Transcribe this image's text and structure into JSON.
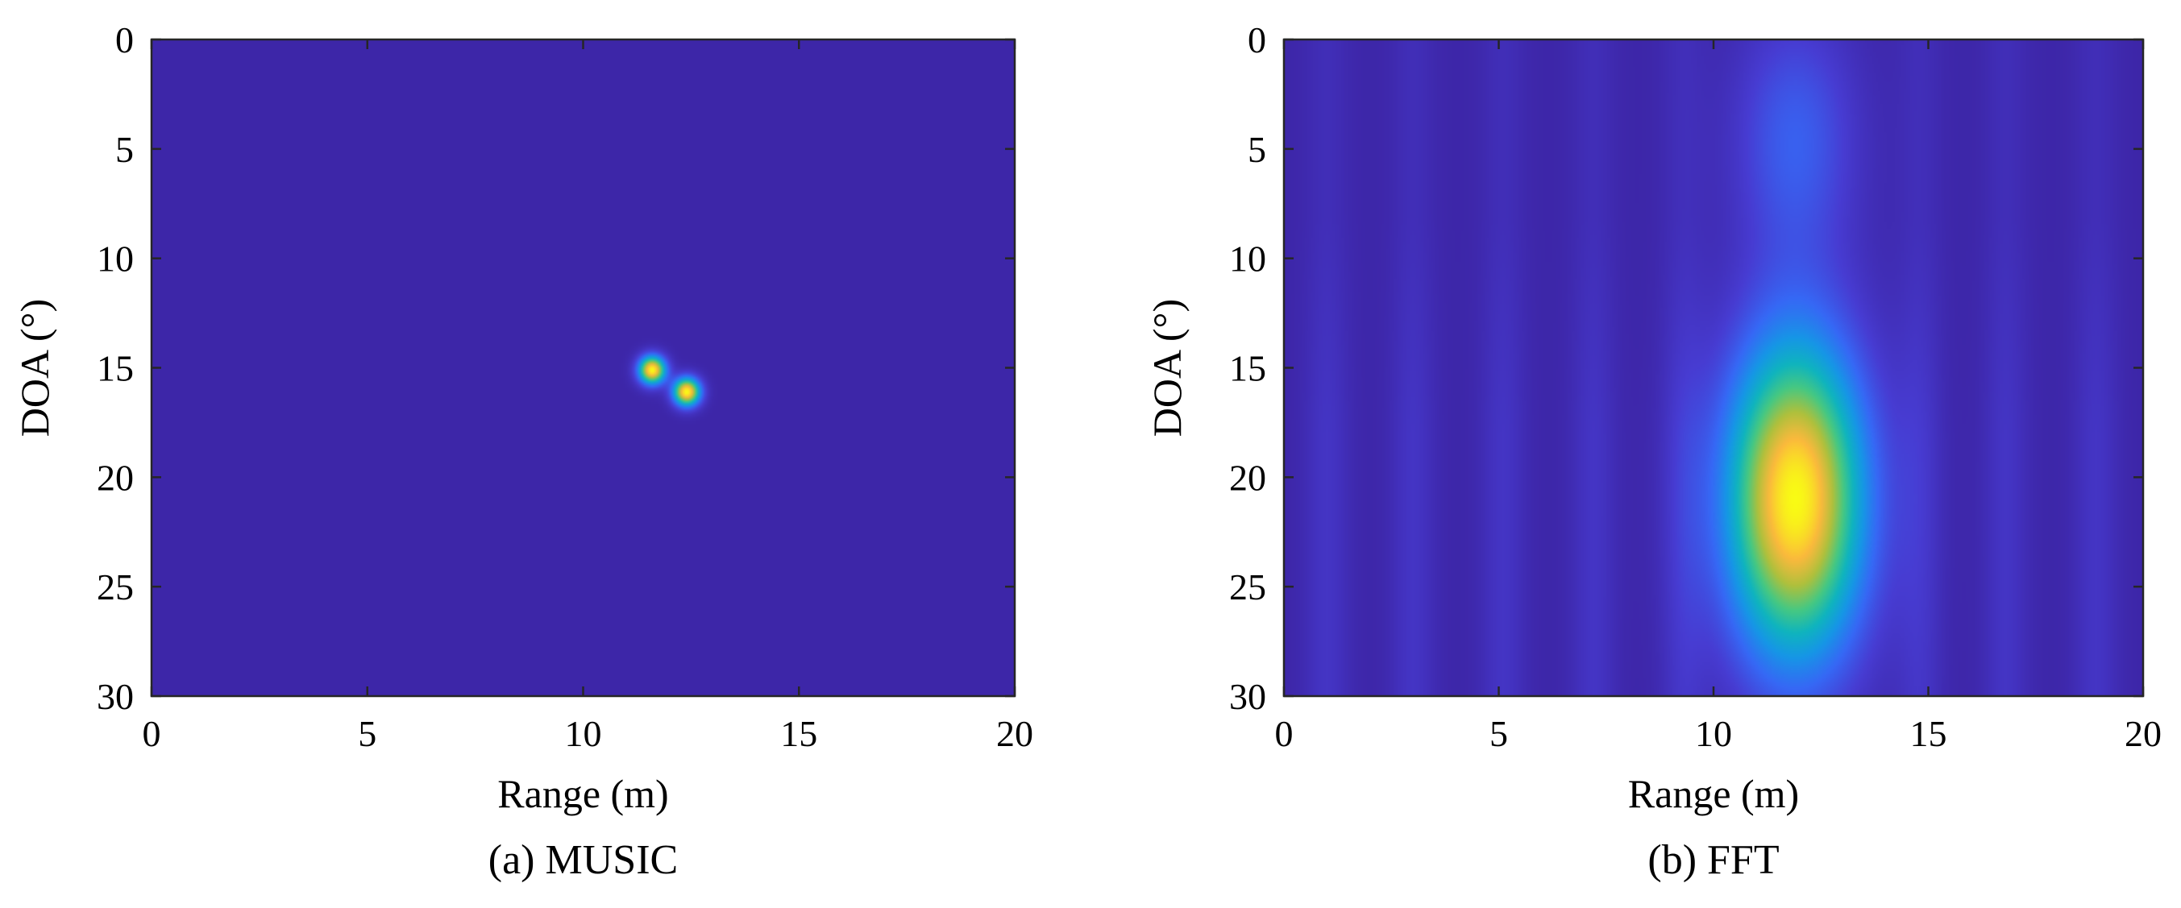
{
  "chart_data": [
    {
      "type": "heatmap",
      "caption": "(a) MUSIC",
      "xlabel": "Range (m)",
      "ylabel": "DOA (°)",
      "xlim": [
        0,
        20
      ],
      "ylim": [
        0,
        30
      ],
      "y_reversed": true,
      "xticks": [
        "0",
        "5",
        "10",
        "15",
        "20"
      ],
      "yticks": [
        "0",
        "5",
        "10",
        "15",
        "20",
        "25",
        "30"
      ],
      "colormap": "parula",
      "background_color": "#3D26A8",
      "peaks": [
        {
          "range": 11.6,
          "doa": 15.1,
          "intensity": 1.0
        },
        {
          "range": 12.4,
          "doa": 16.1,
          "intensity": 1.0
        }
      ]
    },
    {
      "type": "heatmap",
      "caption": "(b) FFT",
      "xlabel": "Range (m)",
      "ylabel": "DOA (°)",
      "xlim": [
        0,
        20
      ],
      "ylim": [
        0,
        30
      ],
      "y_reversed": true,
      "xticks": [
        "0",
        "5",
        "10",
        "15",
        "20"
      ],
      "yticks": [
        "0",
        "5",
        "10",
        "15",
        "20",
        "25",
        "30"
      ],
      "colormap": "parula",
      "background_color": "#3D26A8",
      "peaks": [
        {
          "range": 11.9,
          "doa": 21.0,
          "intensity": 1.0,
          "spread_range": 1.15,
          "spread_doa": 5.2
        },
        {
          "range": 11.9,
          "doa": 4.5,
          "intensity": 0.22,
          "spread_range": 1.0,
          "spread_doa": 4.0
        }
      ],
      "sidelobe_ranges": [
        1.0,
        3.0,
        5.1,
        7.2,
        9.3,
        14.8,
        16.8,
        18.9
      ],
      "sidelobe_intensity": 0.08
    }
  ]
}
